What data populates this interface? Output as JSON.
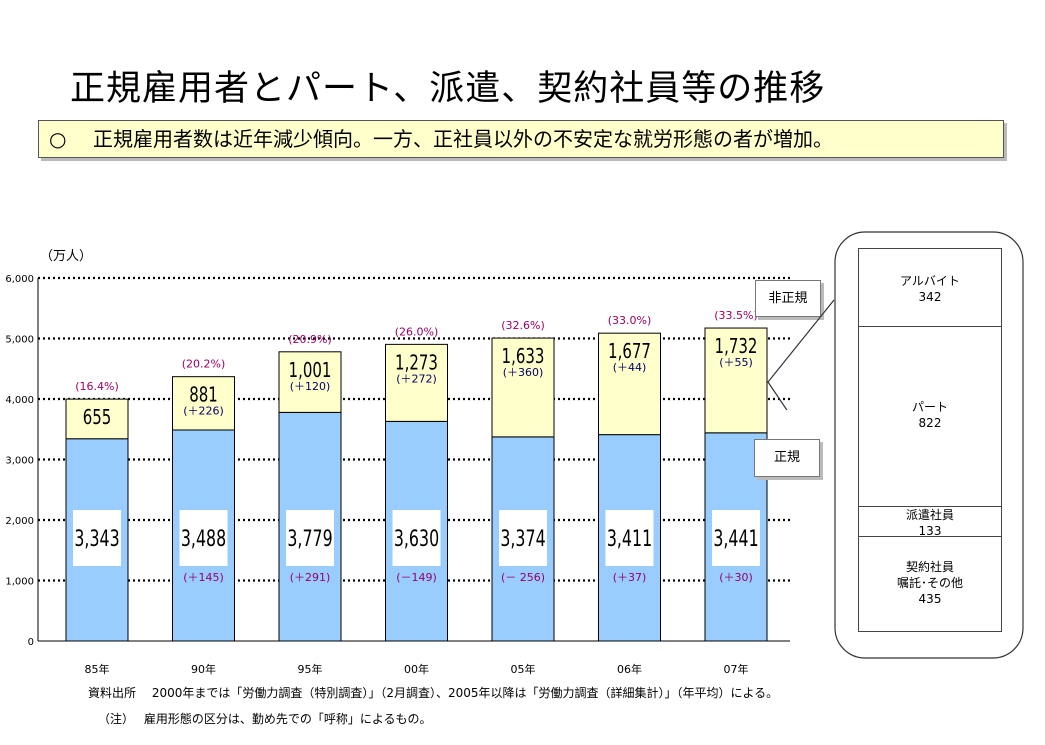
{
  "title": "正規雇用者とパート、派遣、契約社員等の推移",
  "summary": {
    "mark": "○",
    "text": "正規雇用者数は近年減少傾向。一方、正社員以外の不安定な就労形態の者が増加。"
  },
  "legend": {
    "non_regular": "非正規",
    "regular": "正規"
  },
  "breakdown": {
    "segments": [
      {
        "label": "アルバイト",
        "value": "342"
      },
      {
        "label": "パート",
        "value": "822"
      },
      {
        "label": "派遣社員",
        "value": "133"
      },
      {
        "label": "契約社員",
        "label2": "嘱託･その他",
        "value": "435"
      }
    ]
  },
  "chart_data": {
    "type": "bar",
    "stacked": true,
    "unit_label": "（万人）",
    "ylim": [
      0,
      6000
    ],
    "yticks": [
      "0",
      "1,000",
      "2,000",
      "3,000",
      "4,000",
      "5,000",
      "6,000"
    ],
    "categories": [
      "85年",
      "90年",
      "95年",
      "00年",
      "05年",
      "06年",
      "07年"
    ],
    "series": [
      {
        "name": "正規",
        "color": "#99ccff",
        "values": [
          3343,
          3488,
          3779,
          3630,
          3374,
          3411,
          3441
        ],
        "labels": [
          "3,343",
          "3,488",
          "3,779",
          "3,630",
          "3,374",
          "3,411",
          "3,441"
        ],
        "changes": [
          "",
          "(＋145)",
          "(＋291)",
          "(－149)",
          "(－ 256)",
          "(＋37)",
          "(＋30)"
        ]
      },
      {
        "name": "非正規",
        "color": "#ffffcc",
        "values": [
          655,
          881,
          1001,
          1273,
          1633,
          1677,
          1732
        ],
        "labels": [
          "655",
          "881",
          "1,001",
          "1,273",
          "1,633",
          "1,677",
          "1,732"
        ],
        "changes": [
          "",
          "(＋226)",
          "(＋120)",
          "(＋272)",
          "(＋360)",
          "(＋44)",
          "(＋55)"
        ],
        "ratios": [
          "(16.4%)",
          "(20.2%)",
          "(20.9%)",
          "(26.0%)",
          "(32.6%)",
          "(33.0%)",
          "(33.5%)"
        ]
      }
    ]
  },
  "footer": {
    "source": "資料出所　 2000年までは「労働力調査（特別調査）」（2月調査）、2005年以降は「労働力調査（詳細集計）」（年平均）による。",
    "note": "（注）　 雇用形態の区分は、勤め先での「呼称」によるもの。"
  }
}
